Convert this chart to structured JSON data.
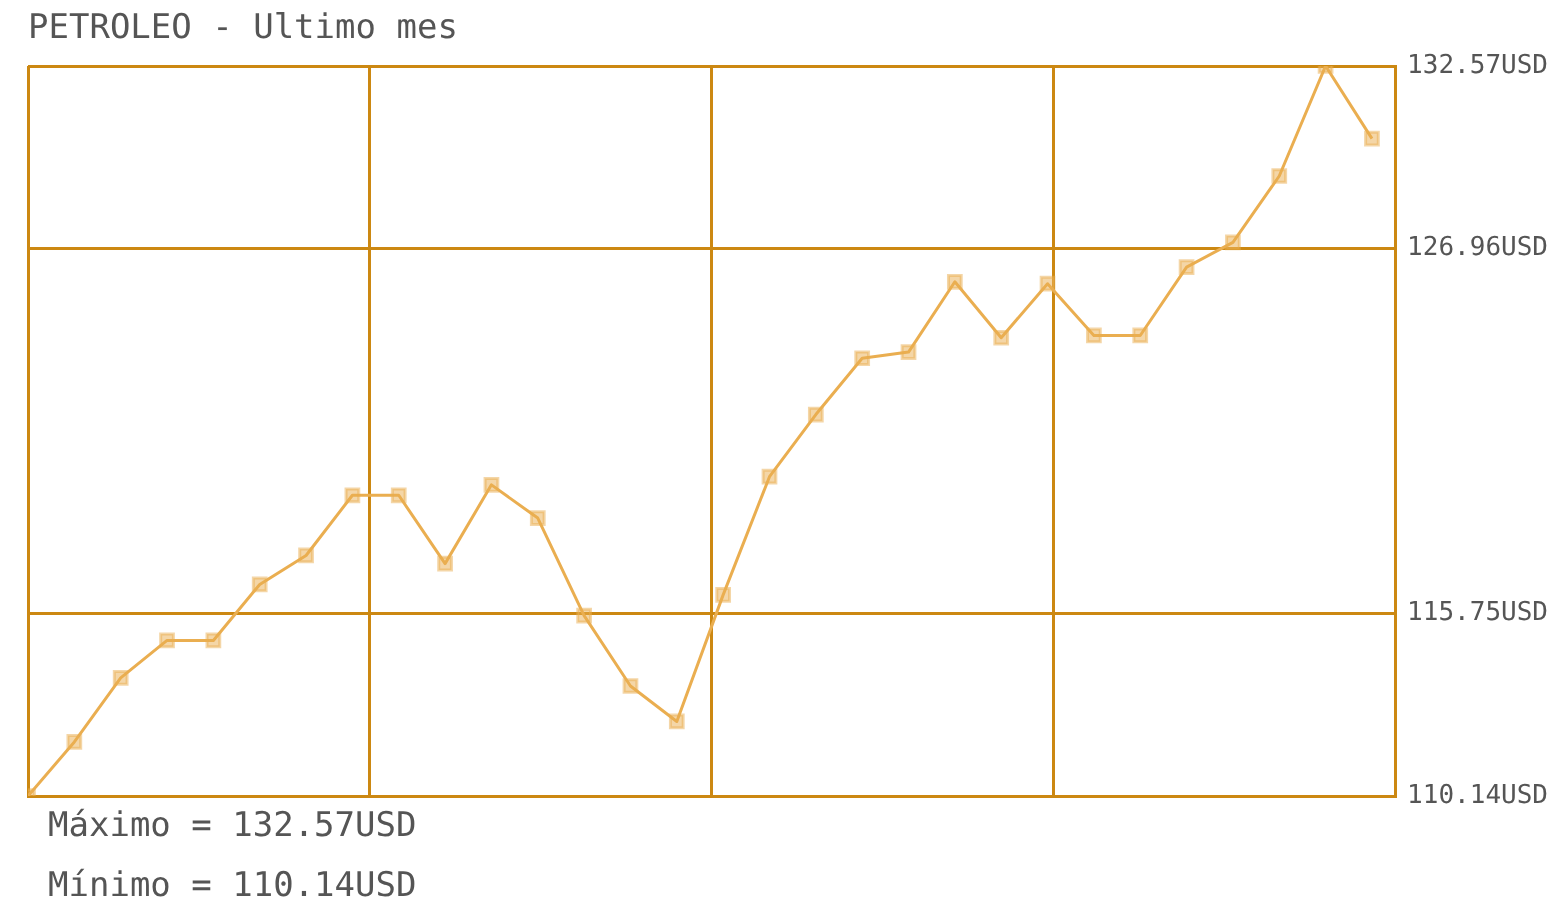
{
  "chart_data": {
    "type": "line",
    "title": "PETROLEO - Ultimo mes",
    "categories": [
      null,
      null,
      null,
      null,
      null,
      null,
      null,
      null,
      null,
      null,
      null,
      null,
      null,
      null,
      null,
      null,
      null,
      null,
      null,
      null,
      null,
      null,
      null,
      null,
      null,
      null,
      null,
      null,
      null,
      null
    ],
    "series": [
      {
        "color": "#eaae50",
        "values": [
          110.14,
          111.8,
          113.77,
          114.92,
          114.92,
          116.64,
          117.53,
          119.38,
          119.38,
          117.28,
          119.7,
          118.68,
          115.68,
          113.52,
          112.43,
          116.32,
          119.95,
          121.86,
          123.59,
          123.78,
          125.94,
          124.22,
          125.88,
          124.29,
          124.29,
          126.39,
          127.15,
          129.19,
          132.57,
          130.34
        ]
      }
    ],
    "ylim": [
      110.14,
      132.57
    ],
    "yticks": [
      {
        "value": 110.14,
        "label": "110.14USD"
      },
      {
        "value": 115.75,
        "label": "115.75USD"
      },
      {
        "value": 126.96,
        "label": "126.96USD"
      },
      {
        "value": 132.57,
        "label": "132.57USD"
      }
    ],
    "tick_labels": "y",
    "grid": true,
    "legend": false,
    "marker": "square",
    "line_style": "solid",
    "annotations": [
      "Máximo = 132.57USD",
      "Mínimo = 110.14USD"
    ]
  }
}
